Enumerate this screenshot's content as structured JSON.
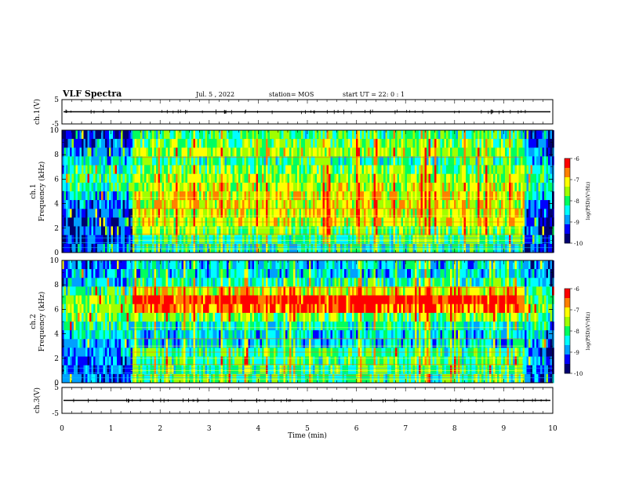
{
  "header": {
    "title": "VLF Spectra",
    "date": "Jul. 5 , 2022",
    "station": "station= MOS",
    "start": "start UT = 22: 0 : 1"
  },
  "colorbar": {
    "ticks": [
      "-6",
      "-7",
      "-8",
      "-9",
      "-10"
    ],
    "label": "log(PSD)(V²/Hz)",
    "colors": [
      "#000070",
      "#0000ff",
      "#00a0ff",
      "#00ffff",
      "#00ff60",
      "#a0ff00",
      "#ffff00",
      "#ff8000",
      "#ff0000",
      "#ffffff"
    ]
  },
  "chart_data": [
    {
      "type": "line",
      "panel": "ch.1 waveform",
      "ylabel": "ch.1(V)",
      "yticks": [
        "5",
        "-5"
      ],
      "ylim": [
        -5,
        5
      ],
      "xlim": [
        0,
        10
      ],
      "x": [
        0,
        10
      ],
      "y": [
        0,
        0
      ]
    },
    {
      "type": "heatmap",
      "panel": "ch.1 spectrogram",
      "ylabel": "ch.1\nFrequency (kHz)",
      "yticks": [
        "0",
        "2",
        "4",
        "6",
        "8",
        "10"
      ],
      "ylim": [
        0,
        10
      ],
      "xlim": [
        0,
        10
      ],
      "log_psd_range": [
        -10,
        -6
      ],
      "data_start_min": 1.4,
      "data_end_min": 9.4
    },
    {
      "type": "heatmap",
      "panel": "ch.2 spectrogram",
      "ylabel": "ch.2\nFrequency (kHz)",
      "yticks": [
        "0",
        "2",
        "4",
        "6",
        "8",
        "10"
      ],
      "ylim": [
        0,
        10
      ],
      "xlim": [
        0,
        10
      ],
      "log_psd_range": [
        -10,
        -6
      ],
      "data_start_min": 1.4,
      "data_end_min": 9.4
    },
    {
      "type": "line",
      "panel": "ch.3 waveform",
      "ylabel": "ch.3(V)",
      "yticks": [
        "5",
        "-5"
      ],
      "ylim": [
        -5,
        5
      ],
      "xlim": [
        0,
        10
      ],
      "x": [
        0,
        10
      ],
      "y": [
        0,
        0
      ]
    }
  ],
  "xaxis": {
    "label": "Time (min)",
    "ticks": [
      "0",
      "1",
      "2",
      "3",
      "4",
      "5",
      "6",
      "7",
      "8",
      "9",
      "10"
    ]
  }
}
